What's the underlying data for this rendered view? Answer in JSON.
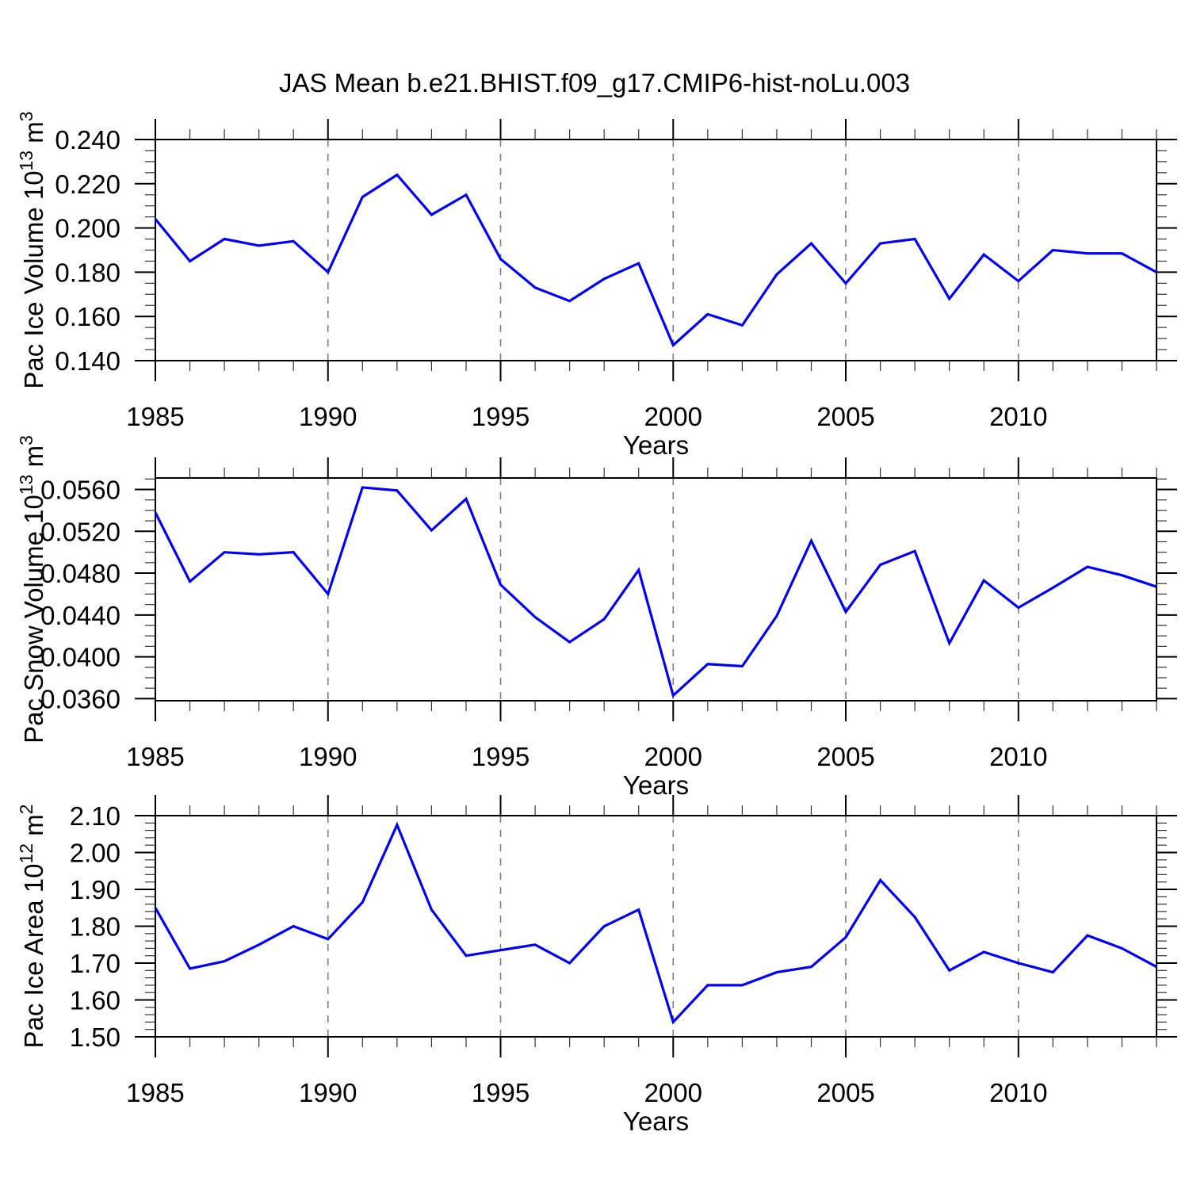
{
  "chart_data": {
    "type": "line",
    "title": "JAS Mean b.e21.BHIST.f09_g17.CMIP6-hist-noLu.003",
    "xlabel": "Years",
    "line_color": "#0000ff",
    "grid_color": "#7d7d7d",
    "axis_color": "#000000",
    "x": [
      1985,
      1986,
      1987,
      1988,
      1989,
      1990,
      1991,
      1992,
      1993,
      1994,
      1995,
      1996,
      1997,
      1998,
      1999,
      2000,
      2001,
      2002,
      2003,
      2004,
      2005,
      2006,
      2007,
      2008,
      2009,
      2010,
      2011,
      2012,
      2013,
      2014
    ],
    "xlim": [
      1985,
      2014
    ],
    "xticks": {
      "values": [
        1985,
        1990,
        1995,
        2000,
        2005,
        2010
      ],
      "labels": [
        "1985",
        "1990",
        "1995",
        "2000",
        "2005",
        "2010"
      ]
    },
    "x_minor_step": 1,
    "grid_years": [
      1990,
      1995,
      2000,
      2005,
      2010
    ],
    "panels": [
      {
        "name": "pac-ice-volume",
        "ylabel_parts": [
          [
            "Pac Ice Volume 10",
            false
          ],
          [
            "13",
            true
          ],
          [
            " m",
            false
          ],
          [
            "3",
            true
          ]
        ],
        "ylim": [
          0.14,
          0.24
        ],
        "yticks": {
          "values": [
            0.14,
            0.16,
            0.18,
            0.2,
            0.22,
            0.24
          ],
          "labels": [
            "0.140",
            "0.160",
            "0.180",
            "0.200",
            "0.220",
            "0.240"
          ]
        },
        "y_minor_step": 0.005,
        "values": [
          0.204,
          0.185,
          0.195,
          0.192,
          0.194,
          0.18,
          0.214,
          0.224,
          0.206,
          0.215,
          0.186,
          0.173,
          0.167,
          0.177,
          0.184,
          0.147,
          0.161,
          0.156,
          0.179,
          0.193,
          0.175,
          0.193,
          0.195,
          0.168,
          0.188,
          0.176,
          0.19,
          0.1885,
          0.1885,
          0.18
        ]
      },
      {
        "name": "pac-snow-volume",
        "ylabel_parts": [
          [
            "Pac Snow Volume 10",
            false
          ],
          [
            "13",
            true
          ],
          [
            " m",
            false
          ],
          [
            "3",
            true
          ]
        ],
        "ylim": [
          0.0358,
          0.0571
        ],
        "yticks": {
          "values": [
            0.036,
            0.04,
            0.044,
            0.048,
            0.052,
            0.056
          ],
          "labels": [
            "0.0360",
            "0.0400",
            "0.0440",
            "0.0480",
            "0.0520",
            "0.0560"
          ]
        },
        "y_minor_step": 0.001,
        "values": [
          0.0538,
          0.0472,
          0.05,
          0.0498,
          0.05,
          0.046,
          0.0562,
          0.0559,
          0.0521,
          0.0551,
          0.0469,
          0.0438,
          0.0414,
          0.0436,
          0.0483,
          0.0363,
          0.0393,
          0.0391,
          0.0439,
          0.0511,
          0.0443,
          0.0488,
          0.0501,
          0.0413,
          0.0473,
          0.0447,
          0.0466,
          0.0486,
          0.0478,
          0.0467
        ]
      },
      {
        "name": "pac-ice-area",
        "ylabel_parts": [
          [
            "Pac Ice Area 10",
            false
          ],
          [
            "12",
            true
          ],
          [
            " m",
            false
          ],
          [
            "2",
            true
          ]
        ],
        "ylim": [
          1.5,
          2.1
        ],
        "yticks": {
          "values": [
            1.5,
            1.6,
            1.7,
            1.8,
            1.9,
            2.0,
            2.1
          ],
          "labels": [
            "1.50",
            "1.60",
            "1.70",
            "1.80",
            "1.90",
            "2.00",
            "2.10"
          ]
        },
        "y_minor_step": 0.02,
        "values": [
          1.85,
          1.685,
          1.705,
          1.75,
          1.8,
          1.765,
          1.865,
          2.075,
          1.845,
          1.72,
          1.735,
          1.75,
          1.7,
          1.8,
          1.845,
          1.54,
          1.64,
          1.64,
          1.675,
          1.69,
          1.77,
          1.925,
          1.825,
          1.68,
          1.73,
          1.7,
          1.675,
          1.775,
          1.74,
          1.69
        ]
      }
    ]
  }
}
